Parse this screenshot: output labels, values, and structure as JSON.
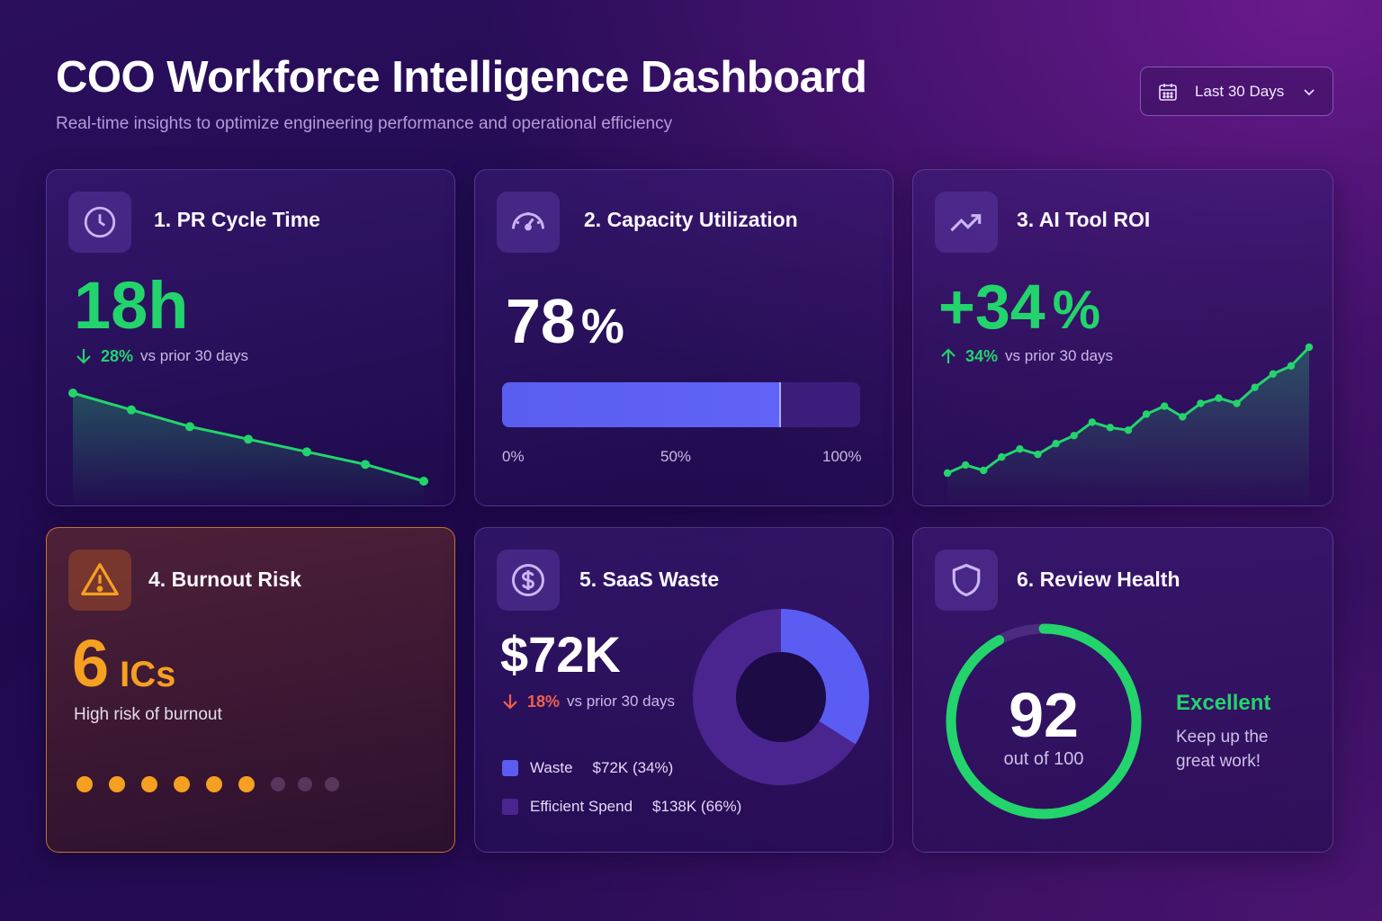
{
  "header": {
    "title": "COO Workforce Intelligence Dashboard",
    "subtitle": "Real-time insights to optimize engineering performance and operational efficiency",
    "date_range": "Last 30 Days"
  },
  "colors": {
    "green": "#22d46b",
    "red": "#f0604f",
    "orange": "#f5a020",
    "accent": "#5b5cf2",
    "purple": "#4a2590"
  },
  "cards": {
    "pr_cycle": {
      "title": "1. PR Cycle Time",
      "icon": "clock-icon",
      "value": "18h",
      "delta_pct": "28%",
      "delta_text": "vs prior 30 days",
      "delta_dir": "down"
    },
    "capacity": {
      "title": "2. Capacity Utilization",
      "icon": "gauge-icon",
      "value_num": "78",
      "value_unit": "%",
      "progress": 0.78,
      "scale": [
        "0%",
        "50%",
        "100%"
      ]
    },
    "ai_roi": {
      "title": "3. AI Tool ROI",
      "icon": "trend-up-icon",
      "value_num": "+34",
      "value_unit": "%",
      "delta_pct": "34%",
      "delta_text": "vs prior 30 days",
      "delta_dir": "up"
    },
    "burnout": {
      "title": "4. Burnout Risk",
      "icon": "warning-icon",
      "value_num": "6",
      "value_unit": "ICs",
      "caption": "High risk of burnout",
      "at_risk": 6,
      "total": 9
    },
    "saas": {
      "title": "5. SaaS Waste",
      "icon": "dollar-icon",
      "value": "$72K",
      "delta_pct": "18%",
      "delta_text": "vs prior 30 days",
      "delta_dir": "down",
      "legend": [
        {
          "name": "Waste",
          "amount": "$72K (34%)",
          "color": "#5b5cf2"
        },
        {
          "name": "Efficient Spend",
          "amount": "$138K (66%)",
          "color": "#4a2590"
        }
      ]
    },
    "review": {
      "title": "6. Review Health",
      "icon": "shield-icon",
      "score": "92",
      "out_of": "out of 100",
      "score_value": 92,
      "score_max": 100,
      "status": "Excellent",
      "message_line1": "Keep up the",
      "message_line2": "great work!"
    }
  },
  "chart_data": [
    {
      "type": "area",
      "series": [
        {
          "values": [
            24,
            22,
            20,
            18.5,
            17,
            15.5,
            13.5
          ]
        }
      ]
    },
    {
      "type": "area",
      "series": [
        {
          "values": [
            2,
            5,
            3,
            8,
            11,
            9,
            13,
            16,
            21,
            19,
            18,
            24,
            27,
            23,
            28,
            30,
            28,
            34,
            39,
            42,
            49
          ]
        }
      ]
    },
    {
      "type": "pie",
      "categories": [
        "Waste",
        "Efficient Spend"
      ],
      "values": [
        34,
        66
      ]
    }
  ]
}
